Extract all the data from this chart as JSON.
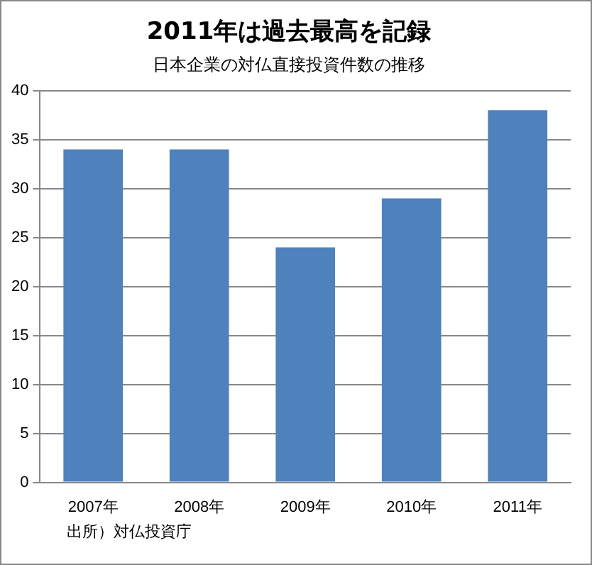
{
  "chart_data": {
    "type": "bar",
    "title": "2011年は過去最高を記録",
    "subtitle": "日本企業の対仏直接投資件数の推移",
    "categories": [
      "2007年",
      "2008年",
      "2009年",
      "2010年",
      "2011年"
    ],
    "values": [
      34,
      34,
      24,
      29,
      38
    ],
    "color": "#4f81bd",
    "ylim": [
      0,
      40
    ],
    "yticks": [
      0,
      5,
      10,
      15,
      20,
      25,
      30,
      35,
      40
    ],
    "grid": "y",
    "legend": false,
    "annotations": [
      "出所）対仏投資庁"
    ]
  }
}
